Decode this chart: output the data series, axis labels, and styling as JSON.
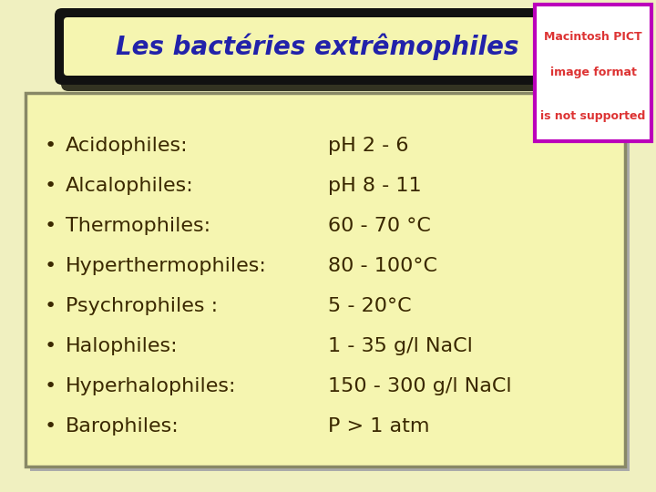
{
  "title": "Les bactéries extrêmophiles",
  "background_color": "#f5f5b0",
  "outer_bg": "#f0f0c0",
  "title_color": "#2222aa",
  "title_bg": "#f5f5b0",
  "title_border_outer": "#111111",
  "title_shadow_color": "#555544",
  "text_color": "#3a2800",
  "content_border": "#888866",
  "bullet_items": [
    "Acidophiles:",
    "Alcalophiles:",
    "Thermophiles:",
    "Hyperthermophiles:",
    "Psychrophiles :",
    "Halophiles:",
    "Hyperhalophiles:",
    "Barophiles:"
  ],
  "value_items": [
    "pH 2 - 6",
    "pH 8 - 11",
    "60 - 70 °C",
    "80 - 100°C",
    "5 - 20°C",
    "1 - 35 g/l NaCl",
    "150 - 300 g/l NaCl",
    "P > 1 atm"
  ],
  "macintosh_text": [
    "Macintosh PICT",
    "image format",
    "is not supported"
  ],
  "macintosh_color": "#dd3333",
  "macintosh_border": "#bb00bb",
  "font_size": 16,
  "title_font_size": 20,
  "figw": 7.2,
  "figh": 5.4,
  "dpi": 100
}
